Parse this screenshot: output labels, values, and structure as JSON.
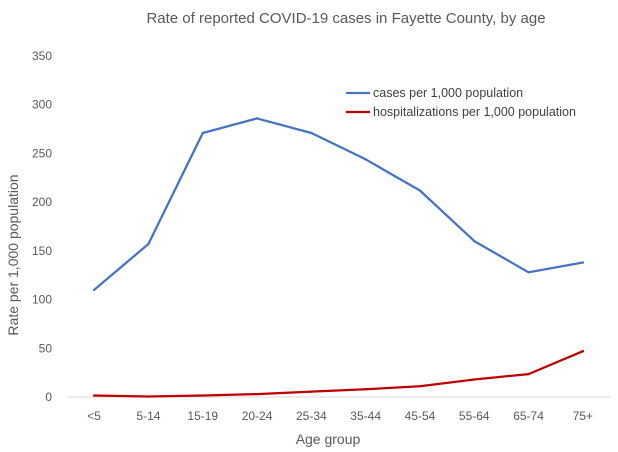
{
  "chart_data": {
    "type": "line",
    "title": "Rate of reported COVID-19 cases in Fayette County, by age",
    "xlabel": "Age group",
    "ylabel": "Rate per 1,000 population",
    "categories": [
      "<5",
      "5-14",
      "15-19",
      "20-24",
      "25-34",
      "35-44",
      "45-54",
      "55-64",
      "65-74",
      "75+"
    ],
    "ylim": [
      0,
      350
    ],
    "yticks": [
      0,
      50,
      100,
      150,
      200,
      250,
      300,
      350
    ],
    "grid": false,
    "legend_position": "top-right",
    "series": [
      {
        "name": "cases per 1,000 population",
        "color": "#4472c4",
        "values": [
          110,
          157,
          271,
          286,
          271,
          244,
          212,
          160,
          128,
          138
        ]
      },
      {
        "name": "hospitalizations per 1,000 population",
        "color": "#c00000",
        "values": [
          1.5,
          0.5,
          1.5,
          3,
          5.5,
          8,
          11,
          18,
          23.5,
          47
        ]
      }
    ]
  }
}
